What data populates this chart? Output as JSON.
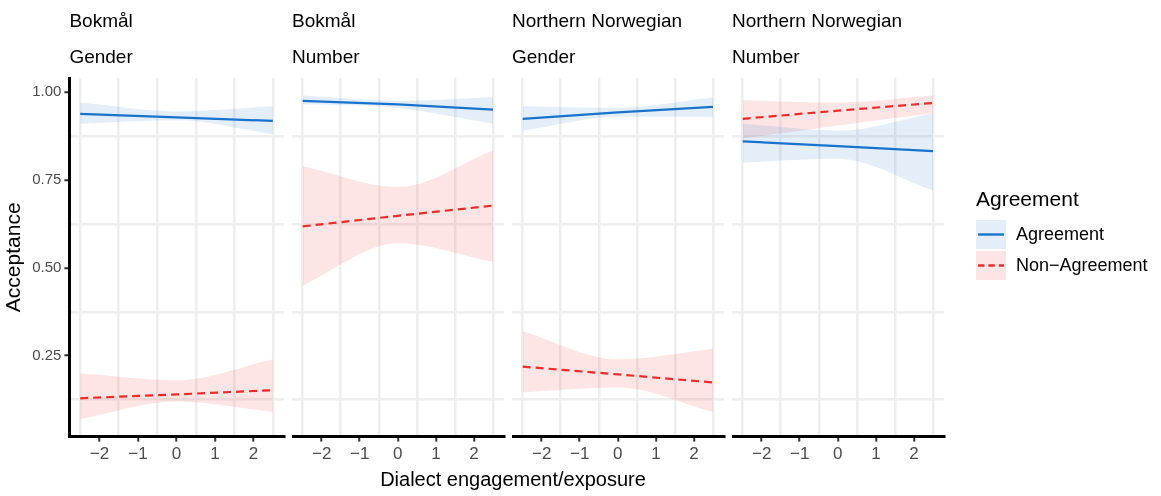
{
  "chart_data": [
    {
      "type": "line",
      "title": "Bokmål",
      "subtitle": "Gender",
      "xlabel": "Dialect engagement/exposure",
      "ylabel": "Acceptance",
      "x": [
        -2.5,
        0,
        2.5
      ],
      "xlim": [
        -2.78,
        2.79
      ],
      "ylim": [
        0.02,
        1.04
      ],
      "xticks": [
        {
          "value": -2.5,
          "label": null
        },
        {
          "value": -2,
          "label": "−2"
        },
        {
          "value": -1.5,
          "label": null
        },
        {
          "value": -1,
          "label": "−1"
        },
        {
          "value": -0.5,
          "label": null
        },
        0,
        {
          "value": 0.5,
          "label": null
        },
        1,
        {
          "value": 1.5,
          "label": null
        },
        2,
        {
          "value": 2.5,
          "label": null
        }
      ],
      "yticks": [
        {
          "value": 0.125,
          "label": null
        },
        {
          "value": 0.25,
          "label": "0.25"
        },
        {
          "value": 0.375,
          "label": null
        },
        {
          "value": 0.5,
          "label": "0.50"
        },
        {
          "value": 0.625,
          "label": null
        },
        {
          "value": 0.75,
          "label": "0.75"
        },
        {
          "value": 0.875,
          "label": null
        },
        {
          "value": 1,
          "label": "1.00"
        }
      ],
      "grid": true,
      "marker": "none",
      "series": [
        {
          "color": "#1874cd",
          "line_style": "solid",
          "values": [
            0.938,
            0.928,
            0.918
          ],
          "lower": [
            0.91,
            0.92,
            0.88
          ],
          "upper": [
            0.97,
            0.945,
            0.96
          ]
        },
        {
          "color": "#ee2c2c",
          "line_style": "dashed",
          "values": [
            0.129,
            0.14,
            0.152
          ],
          "lower": [
            0.07,
            0.12,
            0.09
          ],
          "upper": [
            0.2,
            0.18,
            0.24
          ]
        }
      ]
    },
    {
      "type": "line",
      "title": "Bokmål",
      "subtitle": "Number",
      "x": [
        -2.5,
        0,
        2.5
      ],
      "xlim": [
        -2.78,
        2.79
      ],
      "ylim": [
        0.02,
        1.04
      ],
      "tick_labels": "x",
      "xticks": [
        {
          "value": -2.5,
          "label": null
        },
        {
          "value": -2,
          "label": "−2"
        },
        {
          "value": -1.5,
          "label": null
        },
        {
          "value": -1,
          "label": "−1"
        },
        {
          "value": -0.5,
          "label": null
        },
        0,
        {
          "value": 0.5,
          "label": null
        },
        1,
        {
          "value": 1.5,
          "label": null
        },
        2,
        {
          "value": 2.5,
          "label": null
        }
      ],
      "yticks": [
        {
          "value": 0.125,
          "label": null
        },
        {
          "value": 0.375,
          "label": null
        },
        {
          "value": 0.625,
          "label": null
        },
        {
          "value": 0.875,
          "label": null
        }
      ],
      "grid": true,
      "marker": "none",
      "series": [
        {
          "color": "#1874cd",
          "line_style": "solid",
          "values": [
            0.975,
            0.965,
            0.95
          ],
          "lower": [
            0.965,
            0.955,
            0.91
          ],
          "upper": [
            0.99,
            0.975,
            0.985
          ]
        },
        {
          "color": "#ee2c2c",
          "line_style": "dashed",
          "values": [
            0.618,
            0.648,
            0.677
          ],
          "lower": [
            0.45,
            0.57,
            0.517
          ],
          "upper": [
            0.79,
            0.73,
            0.834
          ]
        }
      ]
    },
    {
      "type": "line",
      "title": "Northern Norwegian",
      "subtitle": "Gender",
      "x": [
        -2.5,
        0,
        2.5
      ],
      "xlim": [
        -2.78,
        2.79
      ],
      "ylim": [
        0.02,
        1.04
      ],
      "tick_labels": "x",
      "xticks": [
        {
          "value": -2.5,
          "label": null
        },
        {
          "value": -2,
          "label": "−2"
        },
        {
          "value": -1.5,
          "label": null
        },
        {
          "value": -1,
          "label": "−1"
        },
        {
          "value": -0.5,
          "label": null
        },
        0,
        {
          "value": 0.5,
          "label": null
        },
        1,
        {
          "value": 1.5,
          "label": null
        },
        2,
        {
          "value": 2.5,
          "label": null
        }
      ],
      "yticks": [
        {
          "value": 0.125,
          "label": null
        },
        {
          "value": 0.375,
          "label": null
        },
        {
          "value": 0.625,
          "label": null
        },
        {
          "value": 0.875,
          "label": null
        }
      ],
      "grid": true,
      "marker": "none",
      "series": [
        {
          "color": "#1874cd",
          "line_style": "solid",
          "values": [
            0.924,
            0.942,
            0.958
          ],
          "lower": [
            0.89,
            0.93,
            0.93
          ],
          "upper": [
            0.96,
            0.955,
            0.985
          ]
        },
        {
          "color": "#ee2c2c",
          "line_style": "dashed",
          "values": [
            0.219,
            0.197,
            0.174
          ],
          "lower": [
            0.146,
            0.16,
            0.09
          ],
          "upper": [
            0.32,
            0.24,
            0.27
          ]
        }
      ]
    },
    {
      "type": "line",
      "title": "Northern Norwegian",
      "subtitle": "Number",
      "x": [
        -2.5,
        0,
        2.5
      ],
      "xlim": [
        -2.78,
        2.79
      ],
      "ylim": [
        0.02,
        1.04
      ],
      "tick_labels": "x",
      "xticks": [
        {
          "value": -2.5,
          "label": null
        },
        {
          "value": -2,
          "label": "−2"
        },
        {
          "value": -1.5,
          "label": null
        },
        {
          "value": -1,
          "label": "−1"
        },
        {
          "value": -0.5,
          "label": null
        },
        0,
        {
          "value": 0.5,
          "label": null
        },
        1,
        {
          "value": 1.5,
          "label": null
        },
        2,
        {
          "value": 2.5,
          "label": null
        }
      ],
      "yticks": [
        {
          "value": 0.125,
          "label": null
        },
        {
          "value": 0.375,
          "label": null
        },
        {
          "value": 0.625,
          "label": null
        },
        {
          "value": 0.875,
          "label": null
        }
      ],
      "grid": true,
      "marker": "none",
      "legend": "right",
      "legend_title": "Agreement",
      "series": [
        {
          "name": "Agreement",
          "color": "#1874cd",
          "line_style": "solid",
          "values": [
            0.86,
            0.846,
            0.832
          ],
          "lower": [
            0.8,
            0.81,
            0.72
          ],
          "upper": [
            0.91,
            0.89,
            0.94
          ]
        },
        {
          "name": "Non−Agreement",
          "color": "#ee2c2c",
          "line_style": "dashed",
          "values": [
            0.924,
            0.947,
            0.969
          ],
          "lower": [
            0.868,
            0.905,
            0.94
          ],
          "upper": [
            0.977,
            0.97,
            0.99
          ]
        }
      ]
    }
  ]
}
